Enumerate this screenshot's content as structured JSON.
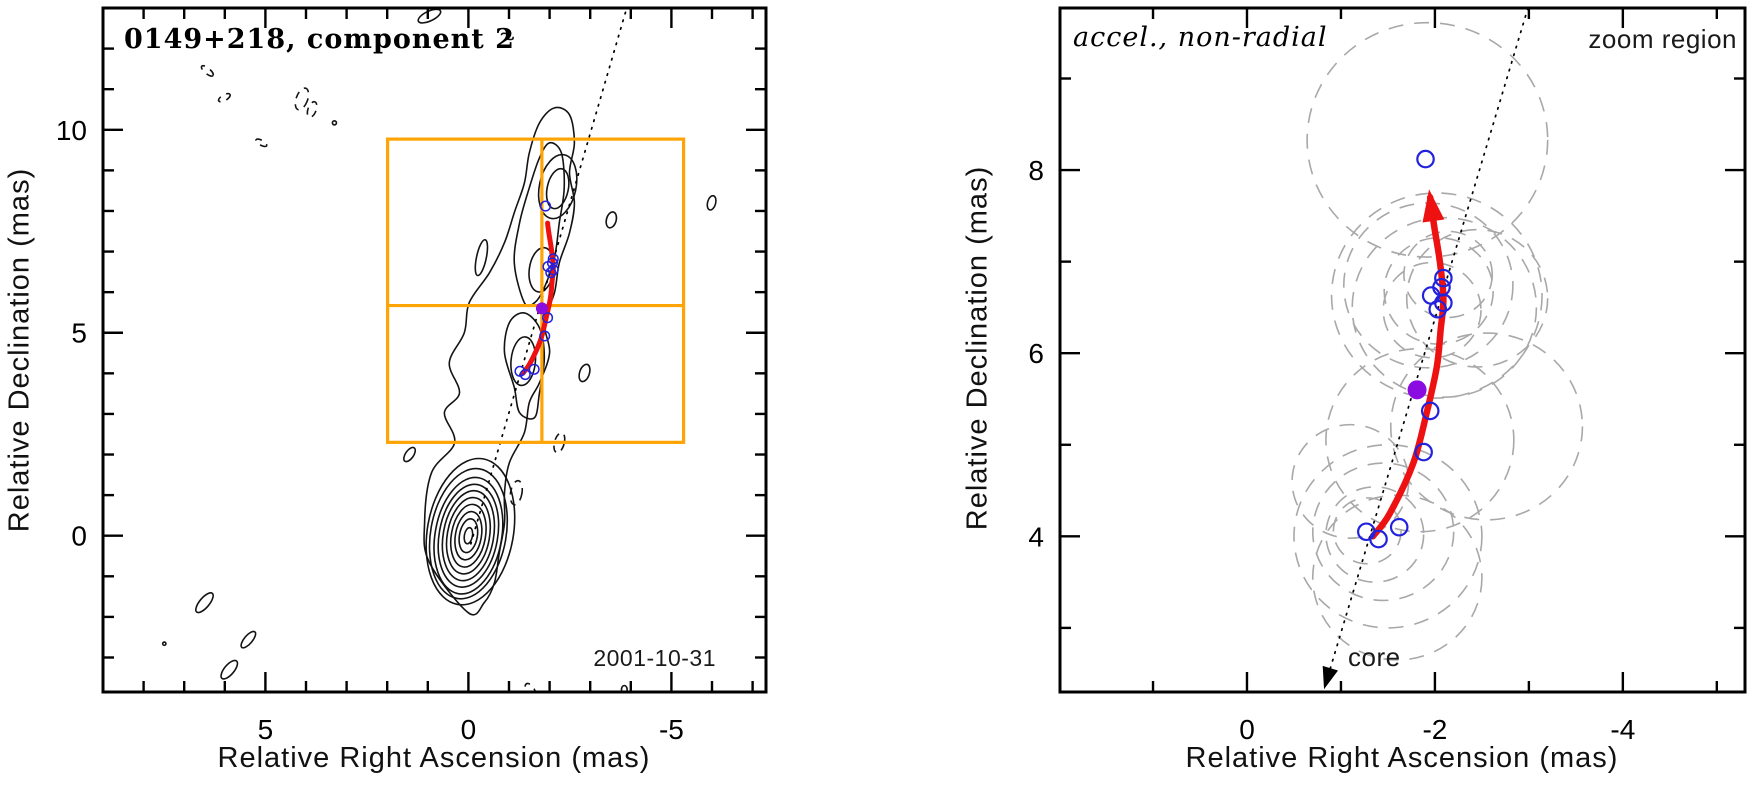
{
  "colors": {
    "frame": "#000000",
    "contour": "#141414",
    "zoom_box": "#ffa405",
    "trajectory": "#ee1111",
    "component": "#2222dd",
    "epoch_marker": "#8a0ce0",
    "beam_circle": "#a8a8a8",
    "dotted_line": "#000000",
    "background": "#ffffff"
  },
  "chart_data": [
    {
      "id": "contour-map",
      "type": "scatter",
      "title": "0149+218, component 2",
      "epoch_label": "2001-10-31",
      "xlabel": "Relative Right Ascension (mas)",
      "ylabel": "Relative Declination (mas)",
      "xlim": [
        9.0,
        -7.33
      ],
      "ylim": [
        -3.85,
        13.0
      ],
      "xticks": {
        "major": [
          5,
          0,
          -5
        ],
        "labels": [
          "5",
          "0",
          "-5"
        ],
        "minor_step": 1
      },
      "yticks": {
        "major": [
          0,
          5,
          10
        ],
        "labels": [
          "0",
          "5",
          "10"
        ],
        "minor_step": 1
      },
      "zoom_box": {
        "ra": [
          1.99,
          -5.3
        ],
        "dec": [
          2.3,
          9.77
        ]
      },
      "crosshair": {
        "ra": -1.81,
        "dec": 5.67
      },
      "dotted_line": [
        [
          -0.06,
          -0.2
        ],
        [
          -3.9,
          13.0
        ]
      ],
      "trajectory": [
        [
          -1.34,
          4.0
        ],
        [
          -1.52,
          4.25
        ],
        [
          -1.77,
          4.8
        ],
        [
          -1.91,
          5.34
        ],
        [
          -2.02,
          5.85
        ],
        [
          -2.06,
          6.25
        ],
        [
          -2.09,
          6.6
        ],
        [
          -2.05,
          7.02
        ],
        [
          -1.99,
          7.4
        ],
        [
          -1.95,
          7.7
        ]
      ],
      "components": [
        [
          -1.9,
          8.12
        ],
        [
          -2.09,
          6.82
        ],
        [
          -2.07,
          6.72
        ],
        [
          -1.96,
          6.63
        ],
        [
          -2.09,
          6.55
        ],
        [
          -2.03,
          6.48
        ],
        [
          -1.95,
          5.37
        ],
        [
          -1.88,
          4.92
        ],
        [
          -1.62,
          4.1
        ],
        [
          -1.4,
          3.97
        ],
        [
          -1.27,
          4.05
        ]
      ],
      "epoch_marker": [
        -1.81,
        5.6
      ],
      "contour_outer": [
        [
          0.0,
          -1.9
        ],
        [
          0.96,
          -0.66
        ],
        [
          1.08,
          0.32
        ],
        [
          0.91,
          1.55
        ],
        [
          0.34,
          2.29
        ],
        [
          0.59,
          3.03
        ],
        [
          0.22,
          3.52
        ],
        [
          0.47,
          4.26
        ],
        [
          0.1,
          5.0
        ],
        [
          -0.02,
          5.74
        ],
        [
          -0.52,
          6.48
        ],
        [
          -0.89,
          7.22
        ],
        [
          -1.13,
          7.96
        ],
        [
          -1.38,
          8.69
        ],
        [
          -1.5,
          9.43
        ],
        [
          -1.75,
          10.17
        ],
        [
          -2.12,
          10.54
        ],
        [
          -2.49,
          10.37
        ],
        [
          -2.61,
          9.68
        ],
        [
          -2.49,
          8.94
        ],
        [
          -2.61,
          8.2
        ],
        [
          -2.49,
          7.46
        ],
        [
          -2.24,
          6.72
        ],
        [
          -2.12,
          5.99
        ],
        [
          -1.87,
          5.25
        ],
        [
          -2.0,
          4.51
        ],
        [
          -1.75,
          3.77
        ],
        [
          -1.5,
          3.28
        ],
        [
          -1.38,
          2.54
        ],
        [
          -1.01,
          1.8
        ],
        [
          -0.89,
          1.06
        ],
        [
          -0.89,
          0.32
        ],
        [
          -0.76,
          -0.42
        ],
        [
          -0.64,
          -1.16
        ],
        [
          -0.39,
          -1.65
        ]
      ],
      "contour_mid": [
        [
          [
            -1.38,
            5.74
          ],
          [
            -1.13,
            6.72
          ],
          [
            -1.26,
            7.71
          ],
          [
            -1.5,
            8.57
          ],
          [
            -1.75,
            9.31
          ],
          [
            -2.0,
            9.68
          ],
          [
            -2.29,
            9.43
          ],
          [
            -2.36,
            8.57
          ],
          [
            -2.24,
            7.71
          ],
          [
            -2.12,
            6.85
          ],
          [
            -1.87,
            6.11
          ],
          [
            -1.63,
            5.74
          ]
        ],
        [
          [
            -1.01,
            5.25
          ],
          [
            -0.89,
            4.51
          ],
          [
            -1.13,
            3.65
          ],
          [
            -1.26,
            3.03
          ],
          [
            -1.63,
            2.91
          ],
          [
            -1.75,
            3.52
          ],
          [
            -1.87,
            4.38
          ],
          [
            -1.75,
            5.12
          ],
          [
            -1.38,
            5.49
          ]
        ]
      ],
      "contour_ellipses": [
        [
          0,
          0,
          0.1,
          0.2,
          10
        ],
        [
          0,
          0,
          0.22,
          0.42,
          10
        ],
        [
          0,
          0,
          0.32,
          0.6,
          10
        ],
        [
          0,
          0,
          0.42,
          0.78,
          10
        ],
        [
          0,
          0,
          0.52,
          0.95,
          10
        ],
        [
          0,
          0,
          0.62,
          1.12,
          10
        ],
        [
          0,
          0,
          0.72,
          1.28,
          10
        ],
        [
          0,
          0,
          0.82,
          1.45,
          10
        ],
        [
          0,
          0.05,
          0.93,
          1.62,
          10
        ],
        [
          -0.05,
          0.1,
          1.06,
          1.82,
          10
        ],
        [
          -2.2,
          8.6,
          0.45,
          0.8,
          12
        ],
        [
          -2.2,
          8.55,
          0.26,
          0.5,
          12
        ],
        [
          -1.8,
          6.55,
          0.3,
          0.55,
          8
        ],
        [
          -1.35,
          4.3,
          0.3,
          0.6,
          5
        ]
      ],
      "noise_blobs": [
        [
          6.43,
          11.45,
          0.18,
          0.07,
          40,
          1
        ],
        [
          6.01,
          10.79,
          0.16,
          0.07,
          -30,
          1
        ],
        [
          4.1,
          10.76,
          0.14,
          0.28,
          20,
          1
        ],
        [
          3.85,
          10.5,
          0.1,
          0.2,
          20,
          1
        ],
        [
          3.3,
          10.17,
          0.05,
          0.05,
          0,
          0
        ],
        [
          5.1,
          9.68,
          0.15,
          0.06,
          30,
          1
        ],
        [
          0.96,
          12.8,
          0.3,
          0.12,
          -25,
          0
        ],
        [
          -0.96,
          12.3,
          0.15,
          0.06,
          20,
          1
        ],
        [
          -3.52,
          7.78,
          0.12,
          0.2,
          15,
          0
        ],
        [
          -5.99,
          8.2,
          0.1,
          0.18,
          15,
          0
        ],
        [
          -0.32,
          6.85,
          0.12,
          0.45,
          12,
          0
        ],
        [
          -2.86,
          4.01,
          0.12,
          0.22,
          18,
          0
        ],
        [
          1.45,
          2.0,
          0.1,
          0.2,
          35,
          0
        ],
        [
          -1.18,
          1.06,
          0.14,
          0.3,
          10,
          1
        ],
        [
          -2.24,
          2.29,
          0.12,
          0.25,
          15,
          1
        ],
        [
          6.5,
          -1.65,
          0.12,
          0.3,
          40,
          0
        ],
        [
          5.89,
          -3.3,
          0.12,
          0.28,
          40,
          0
        ],
        [
          7.49,
          -2.66,
          0.04,
          0.04,
          0,
          0
        ],
        [
          5.42,
          -2.56,
          0.1,
          0.25,
          40,
          0
        ],
        [
          -1.53,
          -3.82,
          0.1,
          0.2,
          -30,
          1
        ],
        [
          -3.84,
          -3.79,
          0.07,
          0.1,
          0,
          0
        ]
      ]
    },
    {
      "id": "zoom-map",
      "type": "scatter",
      "title": "accel., non-radial",
      "corner_label": "zoom region",
      "core_label": "core",
      "xlabel": "Relative Right Ascension (mas)",
      "ylabel": "Relative Declination (mas)",
      "xlim": [
        1.99,
        -5.3
      ],
      "ylim": [
        2.3,
        9.77
      ],
      "xticks": {
        "major": [
          0,
          -2,
          -4
        ],
        "labels": [
          "0",
          "-2",
          "-4"
        ],
        "minor_step": 1
      },
      "yticks": {
        "major": [
          4,
          6,
          8
        ],
        "labels": [
          "4",
          "6",
          "8"
        ],
        "minor_step": 1
      },
      "radial_line": [
        [
          -2.99,
          9.77
        ],
        [
          -0.82,
          2.33
        ]
      ],
      "trajectory": [
        [
          -1.34,
          4.0
        ],
        [
          -1.52,
          4.25
        ],
        [
          -1.77,
          4.8
        ],
        [
          -1.91,
          5.34
        ],
        [
          -2.02,
          5.85
        ],
        [
          -2.06,
          6.25
        ],
        [
          -2.09,
          6.6
        ],
        [
          -2.05,
          7.02
        ],
        [
          -1.99,
          7.4
        ],
        [
          -1.95,
          7.7
        ]
      ],
      "components": [
        [
          -1.9,
          8.12
        ],
        [
          -2.09,
          6.82
        ],
        [
          -2.07,
          6.72
        ],
        [
          -1.96,
          6.63
        ],
        [
          -2.09,
          6.55
        ],
        [
          -2.03,
          6.48
        ],
        [
          -1.95,
          5.37
        ],
        [
          -1.88,
          4.92
        ],
        [
          -1.62,
          4.1
        ],
        [
          -1.4,
          3.97
        ],
        [
          -1.27,
          4.05
        ]
      ],
      "epoch_marker": [
        -1.81,
        5.6
      ],
      "beam_circles": [
        [
          -1.92,
          8.33,
          1.28
        ],
        [
          -2.02,
          6.63,
          1.12
        ],
        [
          -2.1,
          6.5,
          0.98
        ],
        [
          -1.93,
          6.74,
          0.9
        ],
        [
          -2.04,
          6.68,
          0.58
        ],
        [
          -1.97,
          6.47,
          0.52
        ],
        [
          -2.14,
          6.86,
          0.47
        ],
        [
          -2.45,
          6.6,
          0.75
        ],
        [
          -2.55,
          5.2,
          1.02
        ],
        [
          -1.84,
          5.05,
          1.0
        ],
        [
          -1.1,
          4.6,
          0.62
        ],
        [
          -1.5,
          4.0,
          1.0
        ],
        [
          -1.45,
          4.05,
          0.75
        ],
        [
          -1.36,
          4.02,
          0.52
        ],
        [
          -1.28,
          4.06,
          0.36
        ],
        [
          -1.6,
          3.55,
          0.9
        ]
      ]
    }
  ]
}
